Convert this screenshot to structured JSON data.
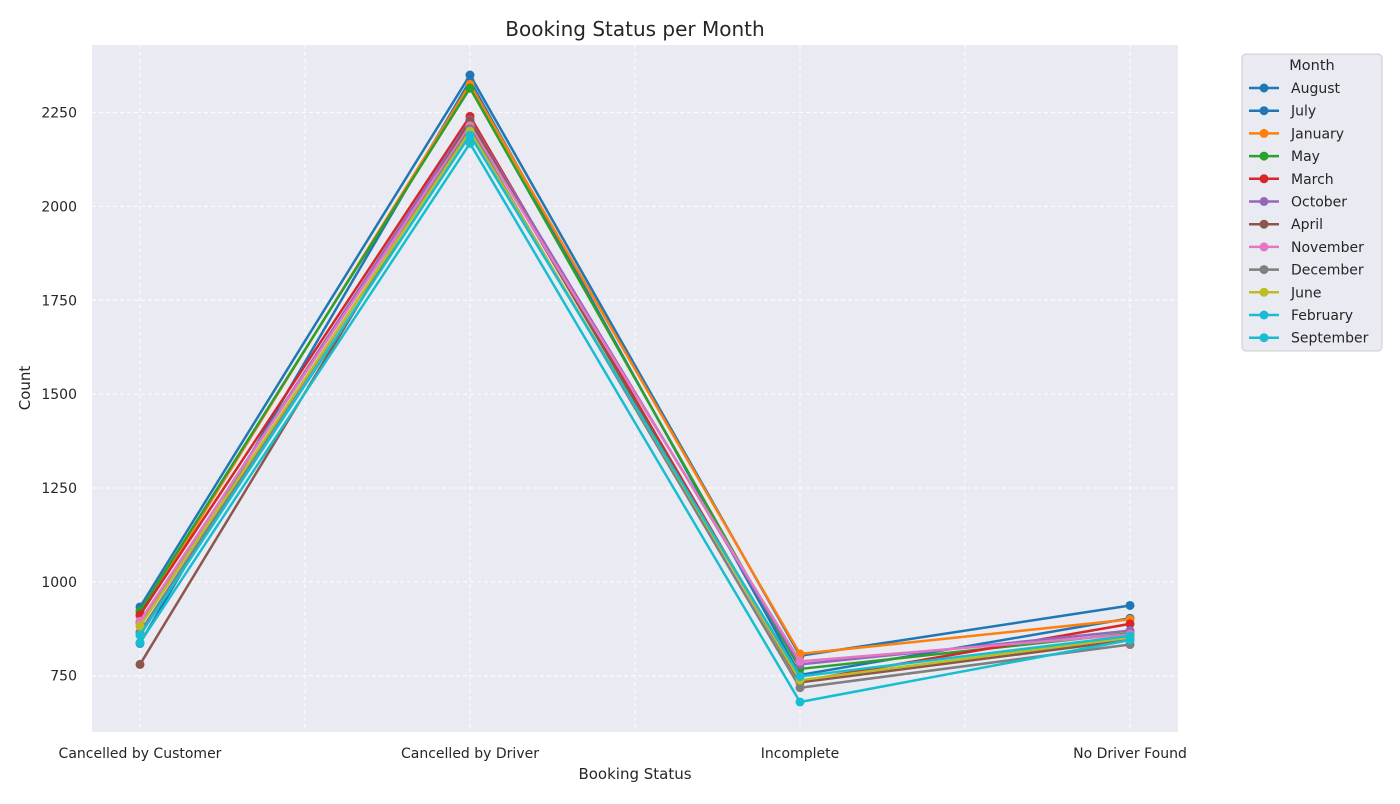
{
  "chart_data": {
    "type": "line",
    "title": "Booking Status per Month",
    "xlabel": "Booking Status",
    "ylabel": "Count",
    "categories": [
      "Cancelled by Customer",
      "Cancelled by Driver",
      "Incomplete",
      "No Driver Found"
    ],
    "ylim": [
      600,
      2430
    ],
    "yticks": [
      750,
      1000,
      1250,
      1500,
      1750,
      2000,
      2250
    ],
    "grid": true,
    "legend": {
      "title": "Month",
      "placement": "outside-top-right"
    },
    "series": [
      {
        "name": "August",
        "color": "#1f77b4",
        "values": [
          933,
          2350,
          803,
          937
        ]
      },
      {
        "name": "July",
        "color": "#1f77b4",
        "values": [
          836,
          2335,
          752,
          903
        ]
      },
      {
        "name": "January",
        "color": "#ff7f0e",
        "values": [
          910,
          2325,
          808,
          900
        ]
      },
      {
        "name": "May",
        "color": "#2ca02c",
        "values": [
          922,
          2315,
          768,
          863
        ]
      },
      {
        "name": "March",
        "color": "#d62728",
        "values": [
          912,
          2240,
          735,
          888
        ]
      },
      {
        "name": "October",
        "color": "#9467bd",
        "values": [
          890,
          2230,
          780,
          870
        ]
      },
      {
        "name": "April",
        "color": "#8c564b",
        "values": [
          780,
          2228,
          732,
          845
        ]
      },
      {
        "name": "November",
        "color": "#e377c2",
        "values": [
          895,
          2215,
          788,
          860
        ]
      },
      {
        "name": "December",
        "color": "#7f7f7f",
        "values": [
          866,
          2207,
          718,
          833
        ]
      },
      {
        "name": "June",
        "color": "#bcbd22",
        "values": [
          882,
          2200,
          738,
          852
        ]
      },
      {
        "name": "February",
        "color": "#17becf",
        "values": [
          858,
          2190,
          748,
          856
        ]
      },
      {
        "name": "September",
        "color": "#17becf",
        "values": [
          838,
          2168,
          680,
          845
        ]
      }
    ]
  }
}
